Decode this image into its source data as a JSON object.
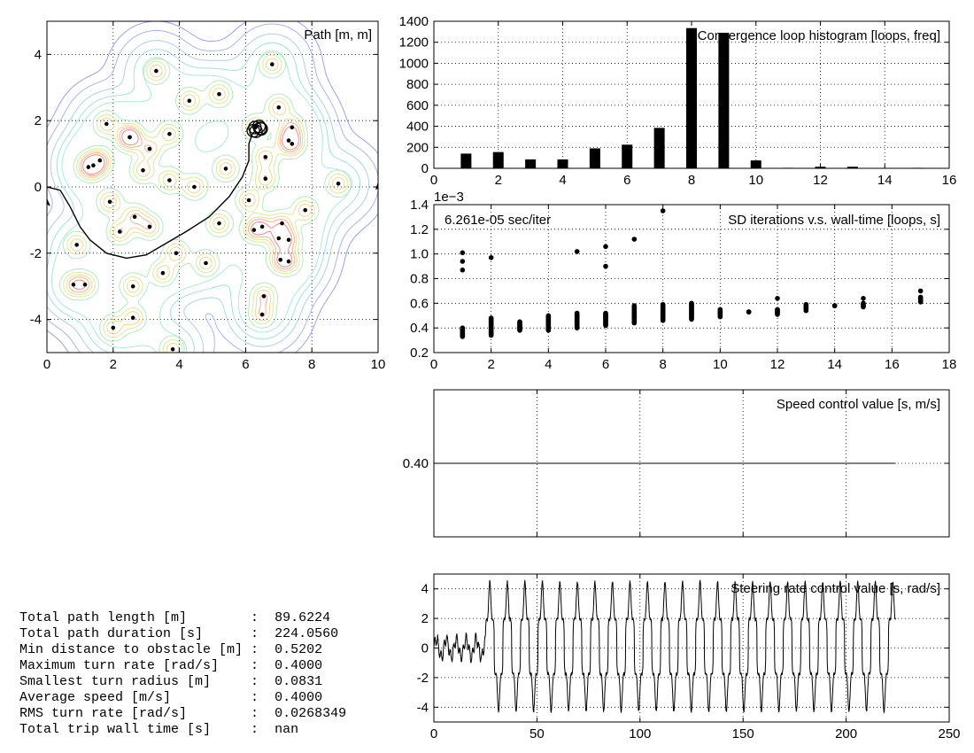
{
  "chart_data": [
    {
      "type": "contour",
      "title": "Path [m, m]",
      "xlim": [
        0,
        10
      ],
      "ylim": [
        -5,
        5
      ],
      "xticks": [
        0,
        2,
        4,
        6,
        8,
        10
      ],
      "yticks": [
        -4,
        -2,
        0,
        2,
        4
      ],
      "grid": true,
      "obstacles": [
        [
          3.3,
          3.5
        ],
        [
          6.8,
          3.7
        ],
        [
          4.3,
          2.6
        ],
        [
          5.2,
          2.8
        ],
        [
          7.0,
          2.4
        ],
        [
          1.8,
          1.9
        ],
        [
          6.3,
          1.8
        ],
        [
          7.4,
          1.8
        ],
        [
          3.7,
          1.6
        ],
        [
          2.5,
          1.5
        ],
        [
          2.5,
          1.5
        ],
        [
          7.3,
          1.4
        ],
        [
          7.4,
          1.3
        ],
        [
          3.1,
          1.15
        ],
        [
          6.6,
          0.9
        ],
        [
          1.6,
          0.8
        ],
        [
          1.4,
          0.65
        ],
        [
          1.25,
          0.6
        ],
        [
          2.9,
          0.5
        ],
        [
          5.4,
          0.55
        ],
        [
          3.7,
          0.2
        ],
        [
          6.6,
          0.25
        ],
        [
          8.8,
          0.1
        ],
        [
          4.45,
          0.0
        ],
        [
          1.9,
          -0.45
        ],
        [
          6.1,
          -0.4
        ],
        [
          7.8,
          -0.7
        ],
        [
          2.65,
          -0.9
        ],
        [
          7.1,
          -1.1
        ],
        [
          5.2,
          -1.1
        ],
        [
          3.1,
          -1.2
        ],
        [
          2.2,
          -1.35
        ],
        [
          6.25,
          -1.3
        ],
        [
          6.5,
          -1.2
        ],
        [
          7.0,
          -1.55
        ],
        [
          7.3,
          -1.6
        ],
        [
          0.9,
          -1.75
        ],
        [
          3.9,
          -2.0
        ],
        [
          4.8,
          -2.3
        ],
        [
          7.05,
          -2.2
        ],
        [
          7.3,
          -2.25
        ],
        [
          3.5,
          -2.6
        ],
        [
          0.8,
          -2.95
        ],
        [
          1.15,
          -2.95
        ],
        [
          2.6,
          -3.0
        ],
        [
          6.55,
          -3.3
        ],
        [
          6.5,
          -3.85
        ],
        [
          2.6,
          -3.95
        ],
        [
          2.0,
          -4.25
        ],
        [
          3.8,
          -4.9
        ]
      ],
      "path": [
        [
          0,
          0
        ],
        [
          0.4,
          -0.1
        ],
        [
          0.7,
          -0.6
        ],
        [
          1.0,
          -1.2
        ],
        [
          1.3,
          -1.6
        ],
        [
          1.8,
          -2.0
        ],
        [
          2.4,
          -2.15
        ],
        [
          3.0,
          -2.05
        ],
        [
          3.6,
          -1.7
        ],
        [
          4.2,
          -1.35
        ],
        [
          4.9,
          -0.9
        ],
        [
          5.5,
          -0.3
        ],
        [
          5.9,
          0.3
        ],
        [
          6.1,
          0.8
        ],
        [
          6.1,
          1.3
        ],
        [
          6.2,
          1.6
        ],
        [
          6.3,
          1.7
        ]
      ]
    },
    {
      "type": "bar",
      "title": "Convergence loop histogram [loops, freq]",
      "x": [
        1,
        2,
        3,
        4,
        5,
        6,
        7,
        8,
        9,
        10,
        11,
        12,
        13,
        14,
        15
      ],
      "values": [
        140,
        155,
        85,
        85,
        190,
        225,
        385,
        1335,
        1290,
        75,
        5,
        15,
        15,
        0,
        5
      ],
      "xlim": [
        0,
        16
      ],
      "ylim": [
        0,
        1400
      ],
      "xticks": [
        0,
        2,
        4,
        6,
        8,
        10,
        12,
        14,
        16
      ],
      "yticks": [
        0,
        200,
        400,
        600,
        800,
        1000,
        1200,
        1400
      ],
      "grid": true
    },
    {
      "type": "scatter",
      "title": "SD iterations v.s. wall-time [loops, s]",
      "annotation": "6.261e-05 sec/iter",
      "y_offset_label": "1e−3",
      "xlim": [
        0,
        18
      ],
      "ylim": [
        0.2,
        1.4
      ],
      "xticks": [
        0,
        2,
        4,
        6,
        8,
        10,
        12,
        14,
        16,
        18
      ],
      "yticks": [
        0.2,
        0.4,
        0.6,
        0.8,
        1.0,
        1.2,
        1.4
      ],
      "grid": true,
      "clusters": [
        {
          "x": 1,
          "ymin": 0.33,
          "ymax": 0.4,
          "outliers": [
            0.87,
            0.94,
            1.01
          ]
        },
        {
          "x": 2,
          "ymin": 0.34,
          "ymax": 0.48,
          "outliers": [
            0.97
          ]
        },
        {
          "x": 3,
          "ymin": 0.38,
          "ymax": 0.45,
          "outliers": []
        },
        {
          "x": 4,
          "ymin": 0.38,
          "ymax": 0.5,
          "outliers": []
        },
        {
          "x": 5,
          "ymin": 0.4,
          "ymax": 0.52,
          "outliers": [
            1.02
          ]
        },
        {
          "x": 6,
          "ymin": 0.42,
          "ymax": 0.52,
          "outliers": [
            0.9,
            1.06
          ]
        },
        {
          "x": 7,
          "ymin": 0.44,
          "ymax": 0.58,
          "outliers": [
            1.12
          ]
        },
        {
          "x": 8,
          "ymin": 0.46,
          "ymax": 0.59,
          "outliers": [
            1.35
          ]
        },
        {
          "x": 9,
          "ymin": 0.47,
          "ymax": 0.6,
          "outliers": []
        },
        {
          "x": 10,
          "ymin": 0.49,
          "ymax": 0.55,
          "outliers": []
        },
        {
          "x": 11,
          "ymin": 0.53,
          "ymax": 0.53,
          "outliers": []
        },
        {
          "x": 12,
          "ymin": 0.51,
          "ymax": 0.55,
          "outliers": [
            0.64
          ]
        },
        {
          "x": 13,
          "ymin": 0.54,
          "ymax": 0.59,
          "outliers": []
        },
        {
          "x": 14,
          "ymin": 0.58,
          "ymax": 0.58,
          "outliers": []
        },
        {
          "x": 15,
          "ymin": 0.57,
          "ymax": 0.6,
          "outliers": [
            0.64
          ]
        },
        {
          "x": 17,
          "ymin": 0.61,
          "ymax": 0.65,
          "outliers": [
            0.7
          ]
        }
      ]
    },
    {
      "type": "line",
      "title": "Speed control value [s, m/s]",
      "xlim": [
        0,
        250
      ],
      "ylim": [
        0.39,
        0.41
      ],
      "yticks": [
        0.4
      ],
      "ytick_labels": [
        "0.40"
      ],
      "grid": true,
      "series": [
        {
          "x": [
            0,
            224
          ],
          "values": [
            0.4,
            0.4
          ]
        }
      ]
    },
    {
      "type": "line",
      "title": "Steering rate control value [s, rad/s]",
      "xlim": [
        0,
        250
      ],
      "ylim": [
        -5,
        5
      ],
      "xticks": [
        0,
        50,
        100,
        150,
        200,
        250
      ],
      "yticks": [
        -4,
        -2,
        0,
        2,
        4
      ],
      "grid": true,
      "series": [
        {
          "x_start": 0,
          "x_end": 224,
          "onset": 25,
          "period": 8.5,
          "amplitude": 4.6,
          "initial_amplitude": 0.6
        }
      ]
    }
  ],
  "stats": [
    {
      "label": "Total path length [m]        ",
      "value": "89.6224"
    },
    {
      "label": "Total path duration [s]      ",
      "value": "224.0560"
    },
    {
      "label": "Min distance to obstacle [m] ",
      "value": "0.5202"
    },
    {
      "label": "Maximum turn rate [rad/s]    ",
      "value": "0.4000"
    },
    {
      "label": "Smallest turn radius [m]     ",
      "value": "0.0831"
    },
    {
      "label": "Average speed [m/s]          ",
      "value": "0.4000"
    },
    {
      "label": "RMS turn rate [rad/s]        ",
      "value": "0.0268349"
    },
    {
      "label": "Total trip wall time [s]     ",
      "value": "nan"
    }
  ]
}
